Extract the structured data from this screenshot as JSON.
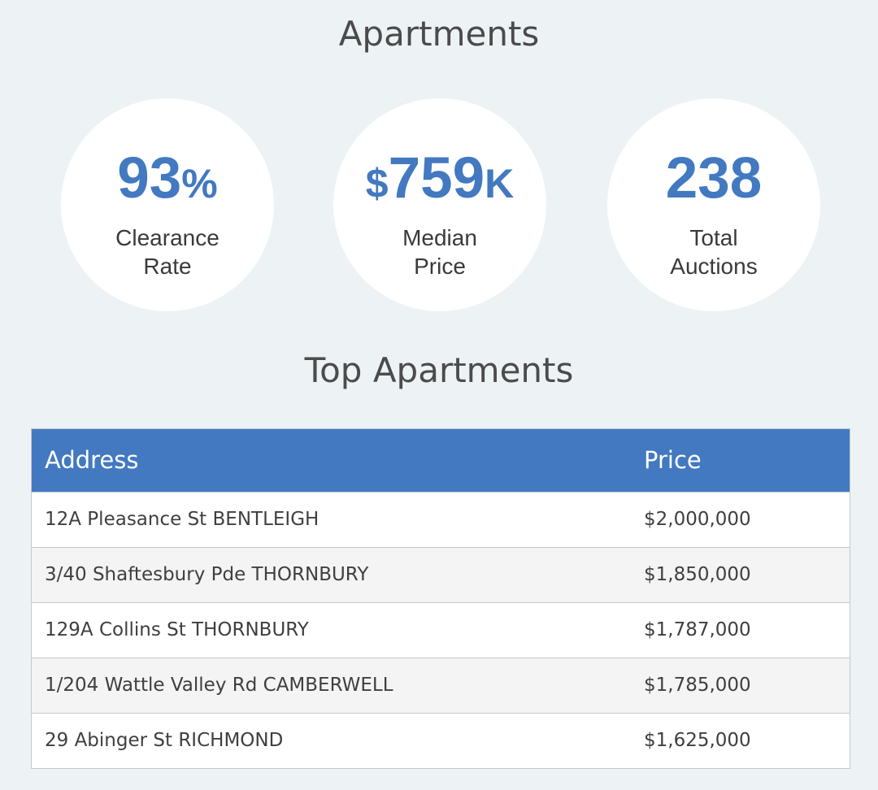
{
  "page_title": "Apartments",
  "stats": [
    {
      "value_main": "93",
      "value_suffix": "%",
      "value_prefix": "",
      "label_line1": "Clearance",
      "label_line2": "Rate"
    },
    {
      "value_main": "759",
      "value_suffix": "K",
      "value_prefix": "$",
      "label_line1": "Median",
      "label_line2": "Price"
    },
    {
      "value_main": "238",
      "value_suffix": "",
      "value_prefix": "",
      "label_line1": "Total",
      "label_line2": "Auctions"
    }
  ],
  "section_title": "Top Apartments",
  "table": {
    "headers": {
      "address": "Address",
      "price": "Price"
    },
    "rows": [
      {
        "address": "12A Pleasance St BENTLEIGH",
        "price": "$2,000,000"
      },
      {
        "address": "3/40 Shaftesbury Pde THORNBURY",
        "price": "$1,850,000"
      },
      {
        "address": "129A Collins St THORNBURY",
        "price": "$1,787,000"
      },
      {
        "address": "1/204 Wattle Valley Rd CAMBERWELL",
        "price": "$1,785,000"
      },
      {
        "address": "29 Abinger St RICHMOND",
        "price": "$1,625,000"
      }
    ]
  },
  "colors": {
    "background": "#edf2f5",
    "accent": "#4279c0",
    "circle": "#ffffff",
    "row_alt": "#f4f4f4"
  }
}
